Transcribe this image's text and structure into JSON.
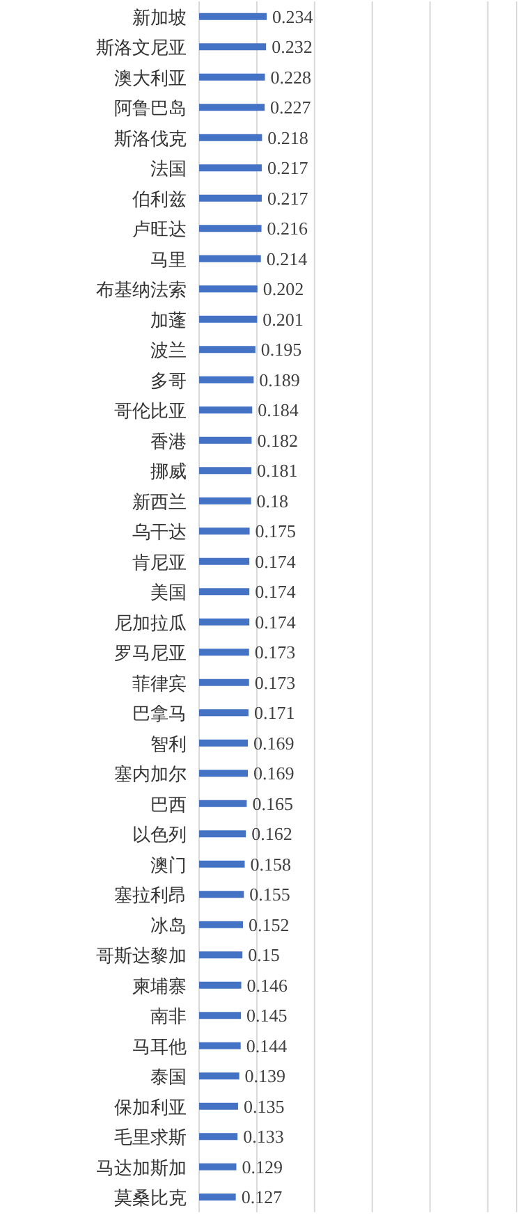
{
  "chart_data": {
    "type": "bar",
    "orientation": "horizontal",
    "categories": [
      "新加坡",
      "斯洛文尼亚",
      "澳大利亚",
      "阿鲁巴岛",
      "斯洛伐克",
      "法国",
      "伯利兹",
      "卢旺达",
      "马里",
      "布基纳法索",
      "加蓬",
      "波兰",
      "多哥",
      "哥伦比亚",
      "香港",
      "挪威",
      "新西兰",
      "乌干达",
      "肯尼亚",
      "美国",
      "尼加拉瓜",
      "罗马尼亚",
      "菲律宾",
      "巴拿马",
      "智利",
      "塞内加尔",
      "巴西",
      "以色列",
      "澳门",
      "塞拉利昂",
      "冰岛",
      "哥斯达黎加",
      "柬埔寨",
      "南非",
      "马耳他",
      "泰国",
      "保加利亚",
      "毛里求斯",
      "马达加斯加",
      "莫桑比克"
    ],
    "values": [
      0.234,
      0.232,
      0.228,
      0.227,
      0.218,
      0.217,
      0.217,
      0.216,
      0.214,
      0.202,
      0.201,
      0.195,
      0.189,
      0.184,
      0.182,
      0.181,
      0.18,
      0.175,
      0.174,
      0.174,
      0.174,
      0.173,
      0.173,
      0.171,
      0.169,
      0.169,
      0.165,
      0.162,
      0.158,
      0.155,
      0.152,
      0.15,
      0.146,
      0.145,
      0.144,
      0.139,
      0.135,
      0.133,
      0.129,
      0.127
    ],
    "color": "#4472c4",
    "xlim": [
      0,
      1.1
    ],
    "xticks": [
      {
        "value": 0,
        "label": null
      },
      {
        "value": 0.2,
        "label": null
      },
      {
        "value": 0.4,
        "label": null
      },
      {
        "value": 0.6,
        "label": null
      },
      {
        "value": 0.8,
        "label": null
      },
      {
        "value": 1.0,
        "label": null
      },
      {
        "value": 1.1,
        "label": null
      }
    ],
    "grid": "x",
    "tick_labels": "y",
    "data_labels": true
  }
}
